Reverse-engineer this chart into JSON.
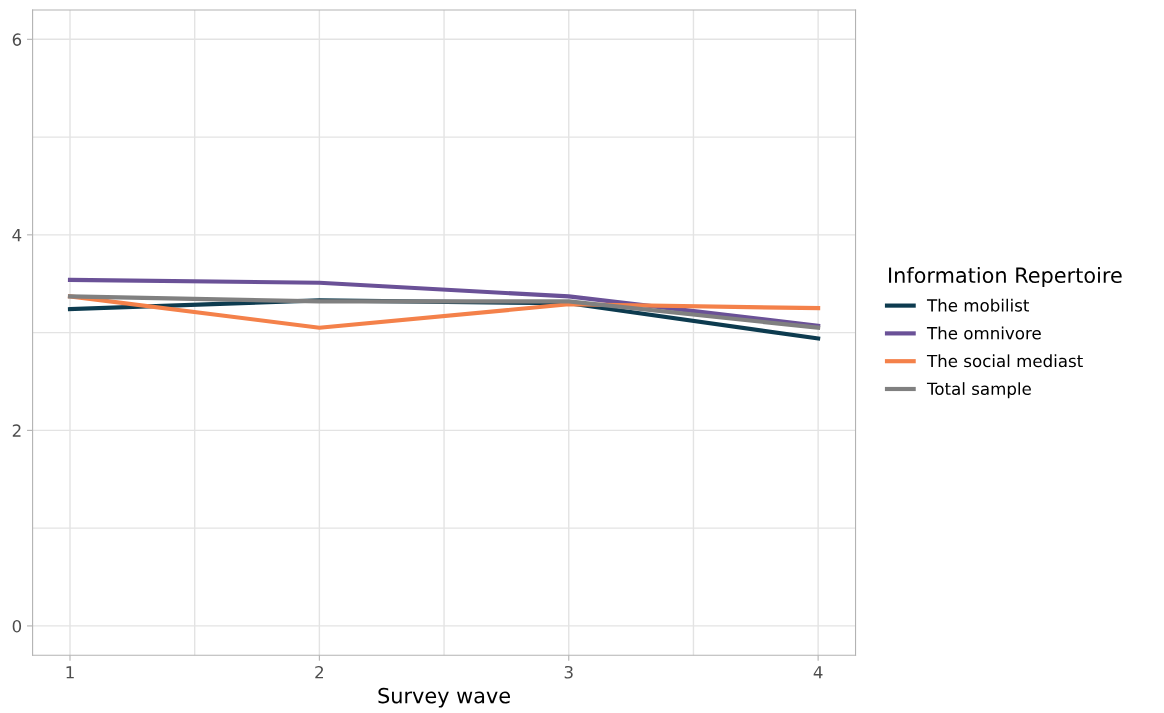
{
  "chart_data": {
    "type": "line",
    "xlabel": "Survey wave",
    "legend_title": "Information Repertoire",
    "x": [
      1,
      2,
      3,
      4
    ],
    "series": [
      {
        "name": "The mobilist",
        "color": "#0d3b4f",
        "values": [
          3.24,
          3.33,
          3.3,
          2.94
        ]
      },
      {
        "name": "The omnivore",
        "color": "#6a5197",
        "values": [
          3.54,
          3.51,
          3.37,
          3.07
        ]
      },
      {
        "name": "The social mediast",
        "color": "#f4814a",
        "values": [
          3.37,
          3.05,
          3.29,
          3.25
        ]
      },
      {
        "name": "Total sample",
        "color": "#808080",
        "values": [
          3.37,
          3.32,
          3.32,
          3.05
        ]
      }
    ],
    "xlim": [
      0.85,
      4.15
    ],
    "xticks": [
      1,
      2,
      3,
      4
    ],
    "ylim": [
      -0.3,
      6.3
    ],
    "yticks": [
      0,
      2,
      4,
      6
    ],
    "grid": true,
    "legend": "right",
    "line_style": "solid",
    "marker": "none"
  }
}
